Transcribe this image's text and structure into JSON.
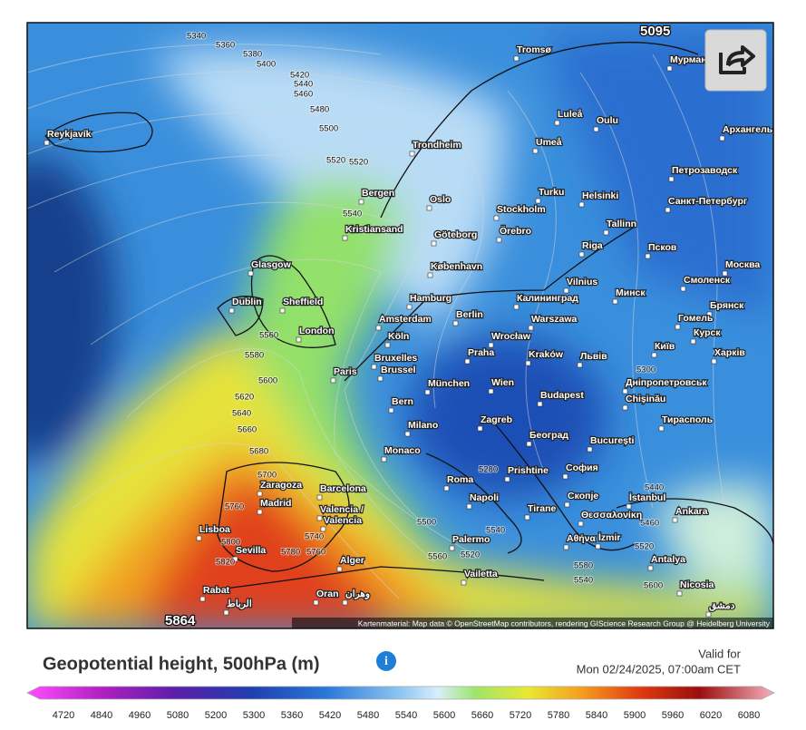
{
  "map": {
    "low_label": "5095",
    "high_label": "5864",
    "attribution": "Kartenmaterial: Map data © OpenStreetMap contributors, rendering GIScience Research Group @ Heidelberg University",
    "cities": [
      "Reykjavík",
      "Tromsø",
      "Мурманск",
      "Luleå",
      "Oulu",
      "Архангельск",
      "Umeå",
      "Trondheim",
      "Петрозаводск",
      "Bergen",
      "Oslo",
      "Turku",
      "Helsinki",
      "Санкт-Петербург",
      "Stockholm",
      "Tallinn",
      "Kristiansand",
      "Göteborg",
      "Örebro",
      "Riga",
      "Псков",
      "København",
      "Glasgow",
      "Москва",
      "Vilnius",
      "Смоленск",
      "Dublin",
      "Sheffield",
      "Hamburg",
      "Калининград",
      "Минск",
      "Брянск",
      "Berlin",
      "Amsterdam",
      "Warszawa",
      "Гомель",
      "London",
      "Köln",
      "Wrocław",
      "Курск",
      "Київ",
      "Bruxelles",
      "Brussel",
      "Praha",
      "Kraków",
      "Львів",
      "Харків",
      "Paris",
      "München",
      "Wien",
      "Дніпропетровськ",
      "Bern",
      "Budapest",
      "Chișinău",
      "Milano",
      "Zagreb",
      "Тирасполь",
      "Београд",
      "Monaco",
      "București",
      "Zaragoza",
      "Barcelona",
      "Roma",
      "Prishtine",
      "София",
      "Madrid",
      "Napoli",
      "Скопје",
      "İstanbul",
      "Valencia /",
      "Valencia",
      "Tirane",
      "Ankara",
      "Θεσσαλονίκη",
      "Lisboa",
      "Sevilla",
      "Palermo",
      "Αθήνα",
      "İzmir",
      "Alger",
      "Antalya",
      "Vailetta",
      "Nicosia",
      "Rabat",
      "الرباط",
      "Oran",
      "وهران",
      "دمشق"
    ],
    "contour_labels": [
      5340,
      5360,
      5380,
      5400,
      5420,
      5440,
      5460,
      5480,
      5500,
      5520,
      5520,
      5540,
      5560,
      5580,
      5600,
      5620,
      5640,
      5660,
      5680,
      5700,
      5760,
      5800,
      5820,
      5780,
      5760,
      5740,
      5300,
      5440,
      5460,
      5500,
      5520,
      5540,
      5560,
      5520,
      5580,
      5540,
      5600,
      5280
    ]
  },
  "legend": {
    "title": "Geopotential height, 500hPa (m)",
    "valid_label": "Valid for",
    "valid_time": "Mon 02/24/2025, 07:00am CET",
    "ticks": [
      4720,
      4840,
      4960,
      5080,
      5200,
      5300,
      5360,
      5420,
      5480,
      5540,
      5600,
      5660,
      5720,
      5780,
      5840,
      5900,
      5960,
      6020,
      6080
    ]
  }
}
